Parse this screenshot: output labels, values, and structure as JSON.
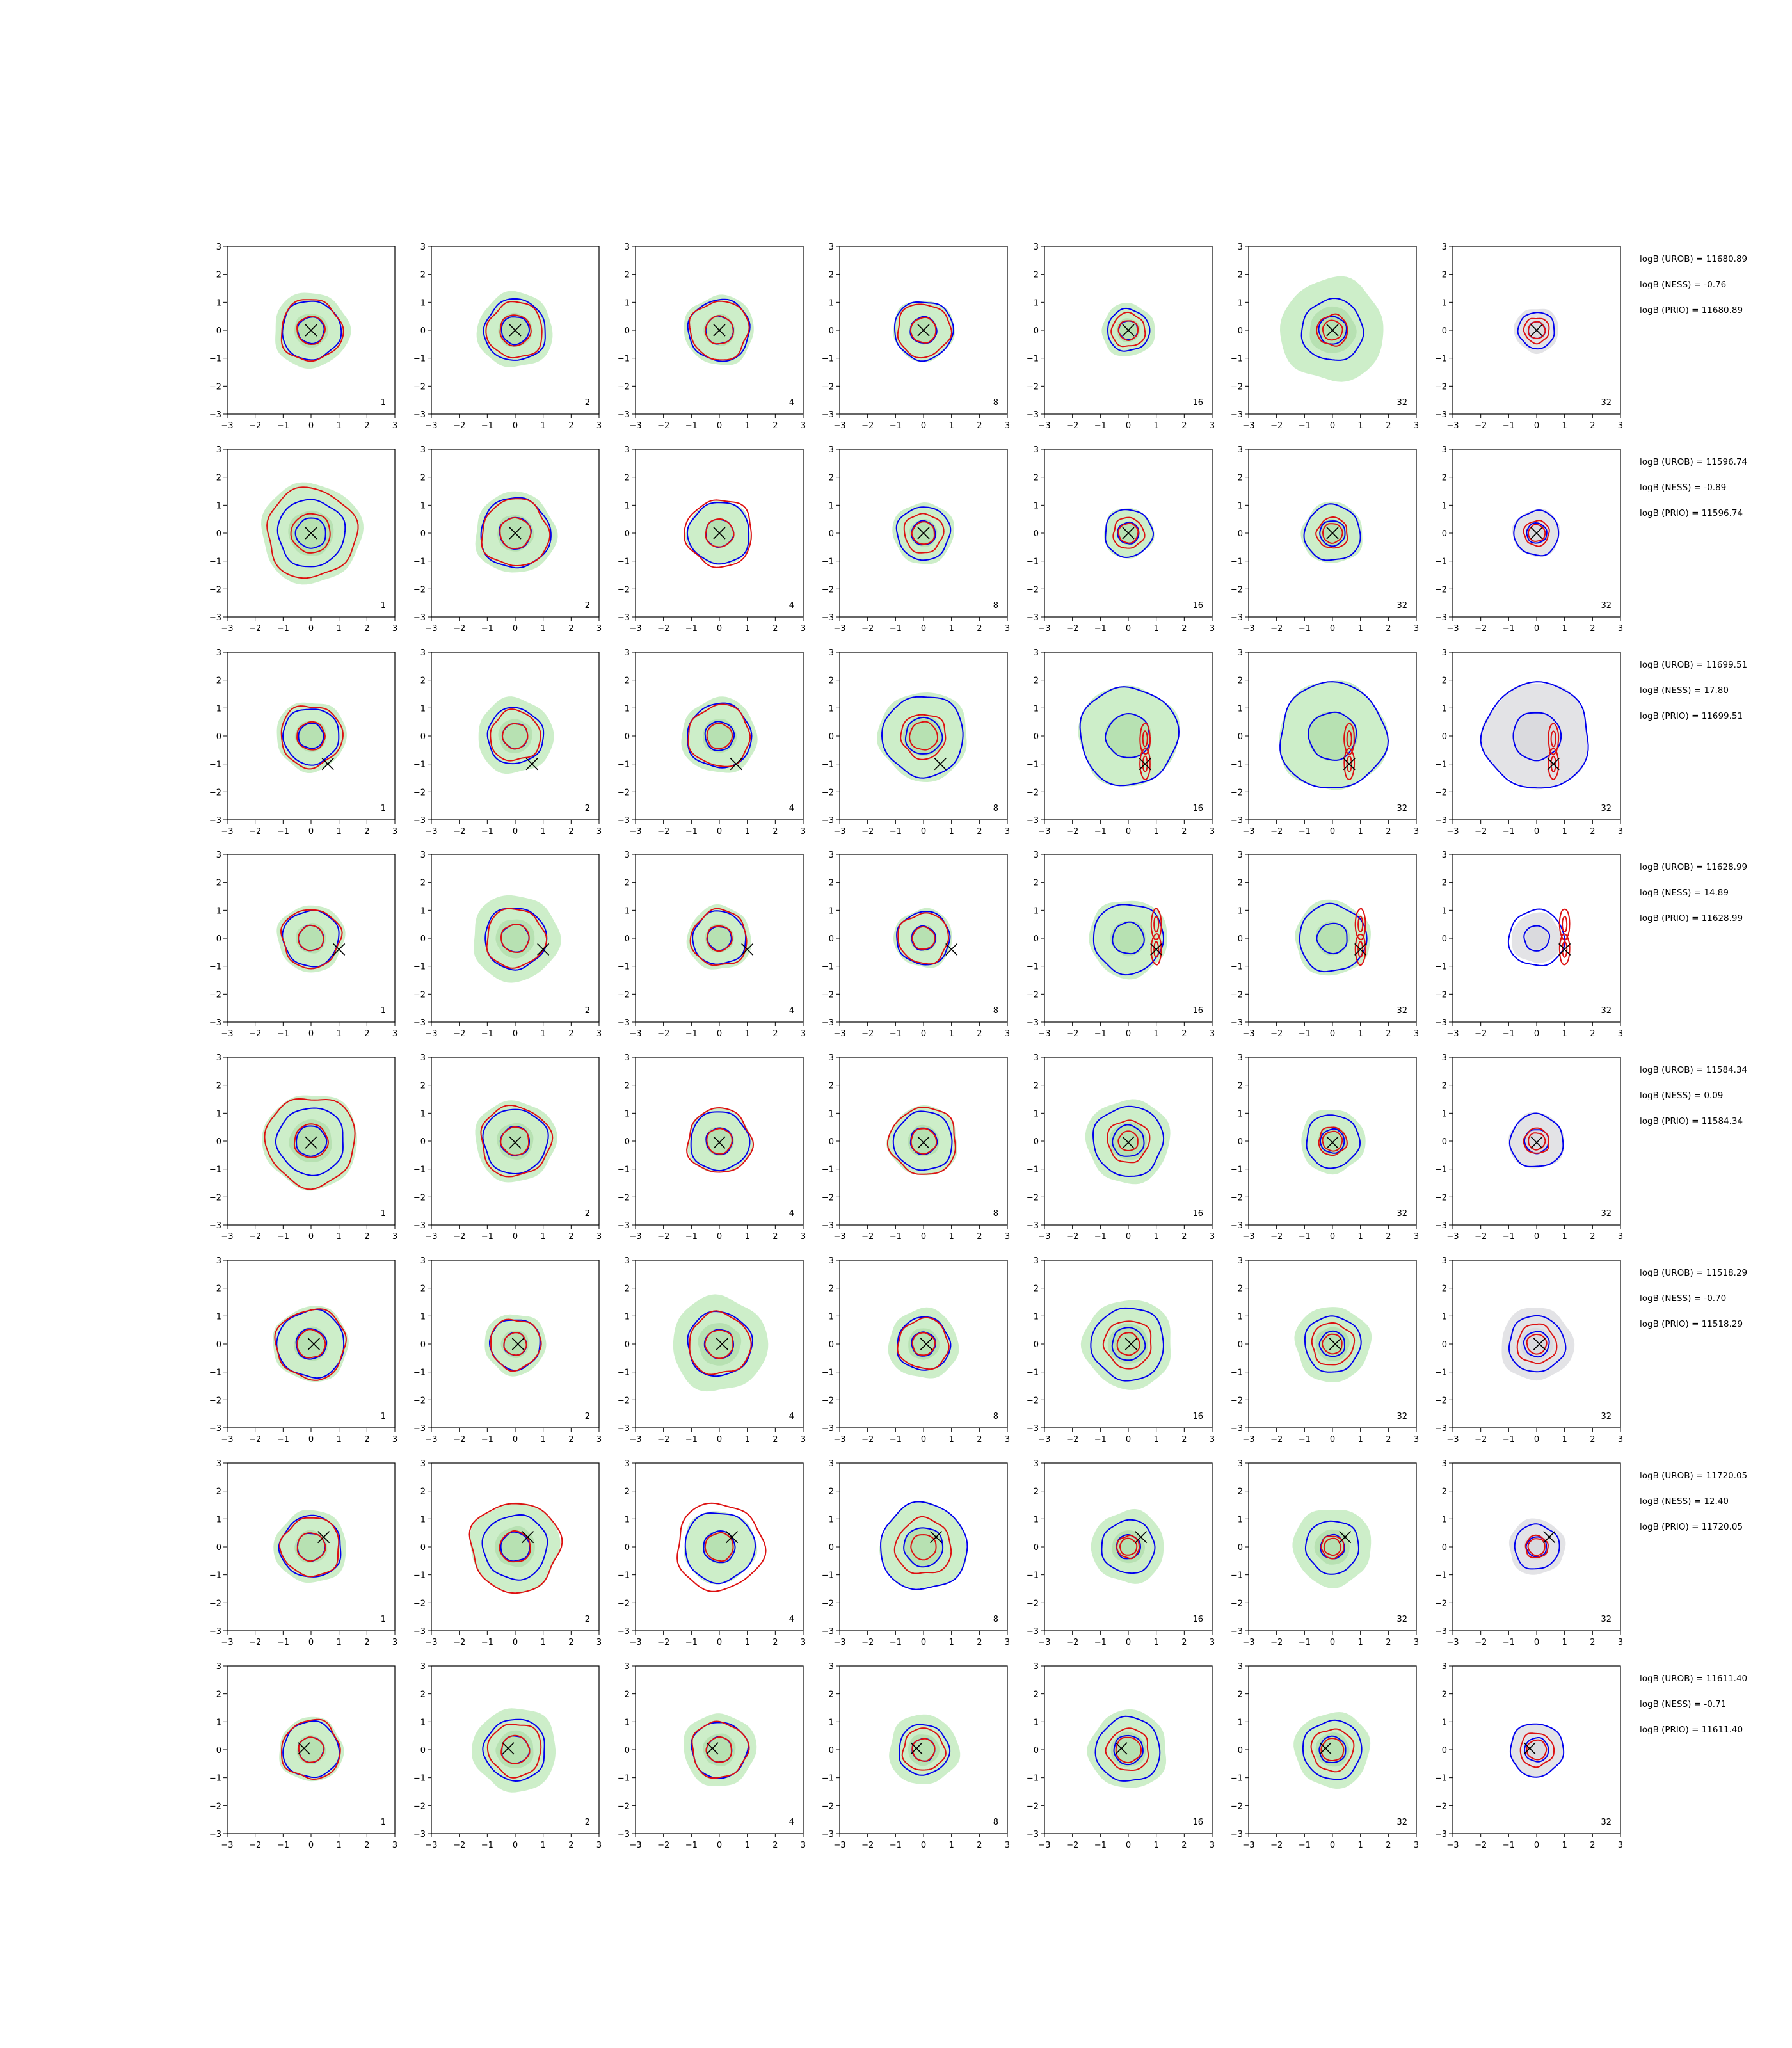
{
  "chart_data": {
    "type": "contour",
    "layout": "grid 8 rows x 7 columns of contour panels",
    "xlim": [
      -3,
      3
    ],
    "ylim": [
      -3,
      3
    ],
    "xticks": [
      -3,
      -2,
      -1,
      0,
      1,
      2,
      3
    ],
    "yticks": [
      -3,
      -2,
      -1,
      0,
      1,
      2,
      3
    ],
    "grid": false,
    "panel_labels": [
      "1",
      "2",
      "4",
      "8",
      "16",
      "32",
      "32"
    ],
    "colors": {
      "green_fill": "#cdeec9",
      "green_fill_inner": "#a9d9a4",
      "gray_fill": "#e3e3e6",
      "blue_line": "#0000ee",
      "red_line": "#dd1111",
      "marker": "#000000"
    },
    "rows": [
      {
        "truth": [
          0,
          0
        ],
        "radii": {
          "green": [
            1.35,
            1.35,
            1.25,
            1.1,
            0.95,
            1.85,
            0.8
          ],
          "blue": [
            1.05,
            1.1,
            1.1,
            1.05,
            0.75,
            1.1,
            0.65
          ],
          "red_outer": [
            1.1,
            1.0,
            1.05,
            0.95,
            0.6,
            0.55,
            0.45
          ],
          "red_inner": [
            0.5,
            0.55,
            0.5,
            0.45,
            0.35,
            0.35,
            0.3
          ]
        },
        "stats": {
          "urob": "logB (UROB) = 11680.89",
          "ness": "logB (NESS) = -0.76",
          "prio": "logB (PRIO) = 11680.89"
        }
      },
      {
        "truth": [
          0,
          0
        ],
        "radii": {
          "green": [
            1.8,
            1.45,
            1.15,
            1.1,
            0.9,
            1.1,
            0.85
          ],
          "blue": [
            1.2,
            1.25,
            1.1,
            0.95,
            0.85,
            1.0,
            0.8
          ],
          "red_outer": [
            1.6,
            1.2,
            1.2,
            0.7,
            0.55,
            0.55,
            0.45
          ],
          "red_inner": [
            0.7,
            0.55,
            0.5,
            0.4,
            0.35,
            0.35,
            0.3
          ]
        },
        "stats": {
          "urob": "logB (UROB) = 11596.74",
          "ness": "logB (NESS) = -0.89",
          "prio": "logB (PRIO) = 11596.74"
        }
      },
      {
        "truth": [
          0.6,
          -1.0
        ],
        "radii": {
          "green": [
            1.25,
            1.35,
            1.35,
            1.6,
            1.8,
            1.95,
            1.9
          ],
          "blue": [
            1.0,
            1.0,
            1.15,
            1.45,
            1.75,
            1.9,
            1.9
          ],
          "red_outer": [
            1.1,
            0.9,
            1.1,
            0.8,
            0.45,
            0.45,
            0.45
          ],
          "red_inner": [
            0.5,
            0.45,
            0.45,
            0.5,
            0.3,
            0.3,
            0.3
          ]
        },
        "stats": {
          "urob": "logB (UROB) = 11699.51",
          "ness": "logB (NESS) = 17.80",
          "prio": "logB (PRIO) = 11699.51"
        }
      },
      {
        "truth": [
          1.0,
          -0.4
        ],
        "radii": {
          "green": [
            1.2,
            1.55,
            1.15,
            1.05,
            1.4,
            1.35,
            0.9
          ],
          "blue": [
            1.0,
            1.1,
            0.95,
            0.95,
            1.25,
            1.2,
            1.0
          ],
          "red_outer": [
            1.05,
            1.05,
            1.0,
            0.9,
            0.65,
            0.4,
            0.4
          ],
          "red_inner": [
            0.45,
            0.5,
            0.45,
            0.4,
            0.4,
            0.25,
            0.25
          ]
        },
        "stats": {
          "urob": "logB (UROB) = 11628.99",
          "ness": "logB (NESS) = 14.89",
          "prio": "logB (PRIO) = 11628.99"
        }
      },
      {
        "truth": [
          0,
          -0.05
        ],
        "radii": {
          "green": [
            1.7,
            1.45,
            1.15,
            1.25,
            1.5,
            1.15,
            1.0
          ],
          "blue": [
            1.2,
            1.15,
            1.05,
            1.05,
            1.25,
            0.95,
            0.95
          ],
          "red_outer": [
            1.6,
            1.25,
            1.15,
            1.2,
            0.75,
            0.5,
            0.45
          ],
          "red_inner": [
            0.6,
            0.5,
            0.45,
            0.45,
            0.35,
            0.35,
            0.3
          ]
        },
        "stats": {
          "urob": "logB (UROB) = 11584.34",
          "ness": "logB (NESS) = 0.09",
          "prio": "logB (PRIO) = 11584.34"
        }
      },
      {
        "truth": [
          0.1,
          0
        ],
        "radii": {
          "green": [
            1.35,
            1.1,
            1.7,
            1.25,
            1.6,
            1.35,
            1.3
          ],
          "blue": [
            1.2,
            0.9,
            1.15,
            0.95,
            1.3,
            1.0,
            1.0
          ],
          "red_outer": [
            1.25,
            0.9,
            1.1,
            0.9,
            0.85,
            0.75,
            0.7
          ],
          "red_inner": [
            0.5,
            0.4,
            0.5,
            0.4,
            0.4,
            0.35,
            0.35
          ]
        },
        "stats": {
          "urob": "logB (UROB) = 11518.29",
          "ness": "logB (NESS) = -0.70",
          "prio": "logB (PRIO) = 11518.29"
        }
      },
      {
        "truth": [
          0.45,
          0.35
        ],
        "radii": {
          "green": [
            1.3,
            1.6,
            1.3,
            1.55,
            1.3,
            1.4,
            1.0
          ],
          "blue": [
            1.1,
            1.15,
            1.25,
            1.55,
            0.95,
            0.95,
            0.8
          ],
          "red_outer": [
            1.05,
            1.6,
            1.55,
            1.0,
            0.4,
            0.4,
            0.4
          ],
          "red_inner": [
            0.5,
            0.55,
            0.5,
            0.45,
            0.3,
            0.3,
            0.3
          ]
        },
        "stats": {
          "urob": "logB (UROB) = 11720.05",
          "ness": "logB (NESS) = 12.40",
          "prio": "logB (PRIO) = 11720.05"
        }
      },
      {
        "truth": [
          -0.25,
          0.05
        ],
        "radii": {
          "green": [
            1.15,
            1.5,
            1.3,
            1.25,
            1.4,
            1.35,
            0.95
          ],
          "blue": [
            1.0,
            1.1,
            1.0,
            0.9,
            1.15,
            1.05,
            0.95
          ],
          "red_outer": [
            1.05,
            0.95,
            1.0,
            0.75,
            0.75,
            0.75,
            0.6
          ],
          "red_inner": [
            0.45,
            0.5,
            0.45,
            0.4,
            0.45,
            0.4,
            0.35
          ]
        },
        "stats": {
          "urob": "logB (UROB) = 11611.40",
          "ness": "logB (NESS) = -0.71",
          "prio": "logB (PRIO) = 11611.40"
        }
      }
    ]
  }
}
